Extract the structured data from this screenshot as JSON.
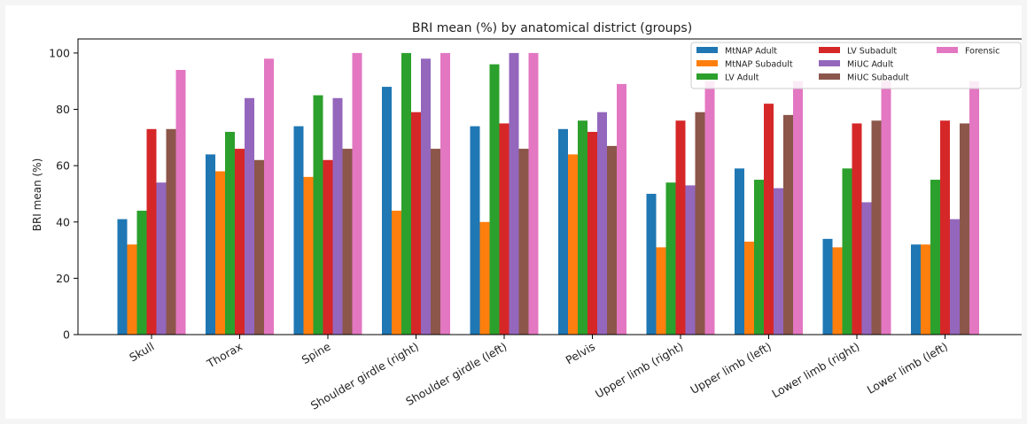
{
  "chart_data": {
    "type": "bar",
    "title": "BRI mean (%) by anatomical district (groups)",
    "xlabel": "",
    "ylabel": "BRI mean (%)",
    "ylim": [
      0,
      105
    ],
    "yticks": [
      0,
      20,
      40,
      60,
      80,
      100
    ],
    "grid": false,
    "legend_position": "top-right",
    "categories": [
      "Skull",
      "Thorax",
      "Spine",
      "Shoulder girdle (right)",
      "Shoulder girdle (left)",
      "Pelvis",
      "Upper limb (right)",
      "Upper limb (left)",
      "Lower limb (right)",
      "Lower limb (left)"
    ],
    "series": [
      {
        "name": "MtNAP Adult",
        "color": "#1f77b4",
        "values": [
          41,
          64,
          74,
          88,
          74,
          73,
          50,
          59,
          34,
          32
        ]
      },
      {
        "name": "MtNAP Subadult",
        "color": "#ff7f0e",
        "values": [
          32,
          58,
          56,
          44,
          40,
          64,
          31,
          33,
          31,
          32
        ]
      },
      {
        "name": "LV Adult",
        "color": "#2ca02c",
        "values": [
          44,
          72,
          85,
          100,
          96,
          76,
          54,
          55,
          59,
          55
        ]
      },
      {
        "name": "LV Subadult",
        "color": "#d62728",
        "values": [
          73,
          66,
          62,
          79,
          75,
          72,
          76,
          82,
          75,
          76
        ]
      },
      {
        "name": "MiUC Adult",
        "color": "#9467bd",
        "values": [
          54,
          84,
          84,
          98,
          100,
          79,
          53,
          52,
          47,
          41
        ]
      },
      {
        "name": "MiUC Subadult",
        "color": "#8c564b",
        "values": [
          73,
          62,
          66,
          66,
          66,
          67,
          79,
          78,
          76,
          75
        ]
      },
      {
        "name": "Forensic",
        "color": "#e377c2",
        "values": [
          94,
          98,
          100,
          100,
          100,
          89,
          90,
          90,
          90,
          90
        ]
      }
    ]
  }
}
